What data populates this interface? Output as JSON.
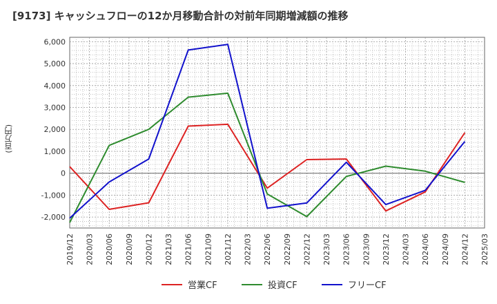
{
  "chart_data": {
    "type": "line",
    "title": "[9173]  キャッシュフローの12か月移動合計の対前年同期増減額の推移",
    "ylabel": "(百万円)",
    "xlabel": "",
    "ylim": [
      -2500,
      6200
    ],
    "yticks": [
      -2000,
      -1000,
      0,
      1000,
      2000,
      3000,
      4000,
      5000,
      6000
    ],
    "ytick_labels": [
      "-2,000",
      "-1,000",
      "0",
      "1,000",
      "2,000",
      "3,000",
      "4,000",
      "5,000",
      "6,000"
    ],
    "categories": [
      "2019/12",
      "2020/03",
      "2020/06",
      "2020/09",
      "2020/12",
      "2021/03",
      "2021/06",
      "2021/09",
      "2021/12",
      "2022/03",
      "2022/06",
      "2022/09",
      "2022/12",
      "2023/03",
      "2023/06",
      "2023/09",
      "2023/12",
      "2024/03",
      "2024/06",
      "2024/09",
      "2024/12",
      "2025/03"
    ],
    "series": [
      {
        "name": "営業CF",
        "color": "#dd2222",
        "points": [
          {
            "x": "2019/12",
            "y": 300
          },
          {
            "x": "2020/06",
            "y": -1650
          },
          {
            "x": "2020/12",
            "y": -1350
          },
          {
            "x": "2021/06",
            "y": 2150
          },
          {
            "x": "2021/12",
            "y": 2230
          },
          {
            "x": "2022/06",
            "y": -680
          },
          {
            "x": "2022/12",
            "y": 620
          },
          {
            "x": "2023/06",
            "y": 650
          },
          {
            "x": "2023/12",
            "y": -1720
          },
          {
            "x": "2024/06",
            "y": -850
          },
          {
            "x": "2024/12",
            "y": 1850
          }
        ]
      },
      {
        "name": "投資CF",
        "color": "#2e8b2e",
        "points": [
          {
            "x": "2019/12",
            "y": -2250
          },
          {
            "x": "2020/06",
            "y": 1270
          },
          {
            "x": "2020/12",
            "y": 2000
          },
          {
            "x": "2021/06",
            "y": 3470
          },
          {
            "x": "2021/12",
            "y": 3650
          },
          {
            "x": "2022/06",
            "y": -950
          },
          {
            "x": "2022/12",
            "y": -1980
          },
          {
            "x": "2023/06",
            "y": -150
          },
          {
            "x": "2023/12",
            "y": 320
          },
          {
            "x": "2024/06",
            "y": 90
          },
          {
            "x": "2024/12",
            "y": -420
          }
        ]
      },
      {
        "name": "フリーCF",
        "color": "#1111cc",
        "points": [
          {
            "x": "2019/12",
            "y": -2050
          },
          {
            "x": "2020/06",
            "y": -400
          },
          {
            "x": "2020/12",
            "y": 650
          },
          {
            "x": "2021/06",
            "y": 5620
          },
          {
            "x": "2021/12",
            "y": 5880
          },
          {
            "x": "2022/06",
            "y": -1600
          },
          {
            "x": "2022/12",
            "y": -1360
          },
          {
            "x": "2023/06",
            "y": 500
          },
          {
            "x": "2023/12",
            "y": -1430
          },
          {
            "x": "2024/06",
            "y": -780
          },
          {
            "x": "2024/12",
            "y": 1450
          }
        ]
      }
    ]
  }
}
